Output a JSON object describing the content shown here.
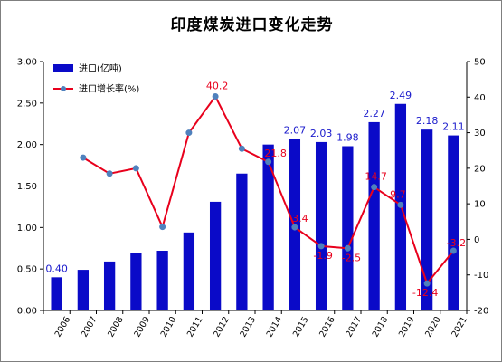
{
  "chart_data": {
    "type": "bar",
    "title": "印度煤炭进口变化走势",
    "categories": [
      "2006",
      "2007",
      "2008",
      "2009",
      "2010",
      "2011",
      "2012",
      "2013",
      "2014",
      "2015",
      "2016",
      "2017",
      "2018",
      "2019",
      "2020",
      "2021"
    ],
    "series": [
      {
        "name": "进口(亿吨)",
        "type": "bar",
        "axis": "left",
        "color": "#0a0ac8",
        "values": [
          0.4,
          0.49,
          0.59,
          0.69,
          0.72,
          0.94,
          1.31,
          1.65,
          2.0,
          2.07,
          2.03,
          1.98,
          2.27,
          2.49,
          2.18,
          2.11
        ],
        "labels": [
          "0.40",
          null,
          null,
          null,
          null,
          null,
          null,
          null,
          null,
          "2.07",
          "2.03",
          "1.98",
          "2.27",
          "2.49",
          "2.18",
          "2.11"
        ],
        "label_color": "#1a1acc"
      },
      {
        "name": "进口增长率(%)",
        "type": "line",
        "axis": "right",
        "color": "#e8001c",
        "marker_color": "#4f81bd",
        "values": [
          null,
          23.0,
          18.5,
          20.0,
          3.5,
          30.0,
          40.2,
          25.5,
          21.8,
          3.4,
          -1.9,
          -2.5,
          14.7,
          9.7,
          -12.4,
          -3.2
        ],
        "labels": [
          null,
          null,
          null,
          null,
          null,
          null,
          "40.2",
          null,
          "21.8",
          "3.4",
          "-1.9",
          "-2.5",
          "14.7",
          "9.7",
          "-12.4",
          "-3.2"
        ],
        "label_color": "#e8001c"
      }
    ],
    "y_left": {
      "min": 0,
      "max": 3,
      "ticks": [
        "0.00",
        "0.50",
        "1.00",
        "1.50",
        "2.00",
        "2.50",
        "3.00"
      ]
    },
    "y_right": {
      "min": -20,
      "max": 50,
      "ticks": [
        "-20",
        "-10",
        "0",
        "10",
        "20",
        "30",
        "40",
        "50"
      ]
    },
    "grid": false,
    "legend_position": "top-left"
  }
}
